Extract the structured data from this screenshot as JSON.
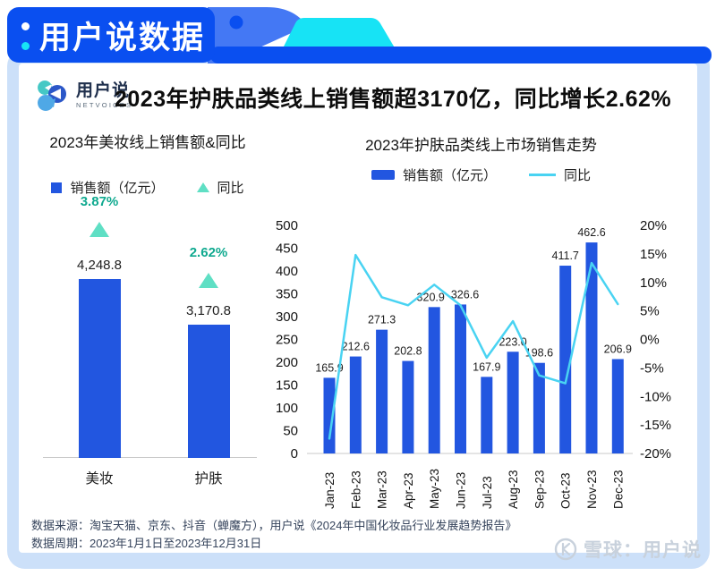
{
  "banner": {
    "title": "用户说数据"
  },
  "brand": {
    "name": "用户说",
    "subtitle": "NETVOICES"
  },
  "headline": "2023年护肤品类线上销售额超3170亿，同比增长2.62%",
  "colors": {
    "banner_blue": "#0A4FF0",
    "header_fish_blue": "#4478F4",
    "ribbon_cyan": "#17E3F5",
    "frame_light_blue": "#CCE0F9",
    "bar_blue": "#2256E0",
    "line_cyan": "#49D3F2",
    "triangle_teal": "#5FDFC4",
    "pct_green": "#0FA98F"
  },
  "chart_data": [
    {
      "type": "bar",
      "title": "2023年美妆线上销售额&同比",
      "legend": [
        "销售额（亿元）",
        "同比"
      ],
      "categories": [
        "美妆",
        "护肤"
      ],
      "series": [
        {
          "name": "销售额（亿元）",
          "values": [
            4248.8,
            3170.8
          ],
          "labels": [
            "4,248.8",
            "3,170.8"
          ]
        },
        {
          "name": "同比",
          "values": [
            3.87,
            2.62
          ],
          "labels": [
            "3.87%",
            "2.62%"
          ]
        }
      ],
      "ylim": [
        0,
        4500
      ],
      "grid": false,
      "legend_position": "top"
    },
    {
      "type": "combo_bar_line",
      "title": "2023年护肤品类线上市场销售走势",
      "legend": [
        "销售额（亿元）",
        "同比"
      ],
      "categories": [
        "Jan-23",
        "Feb-23",
        "Mar-23",
        "Apr-23",
        "May-23",
        "Jun-23",
        "Jul-23",
        "Aug-23",
        "Sep-23",
        "Oct-23",
        "Nov-23",
        "Dec-23"
      ],
      "series": [
        {
          "name": "销售额（亿元）",
          "type": "bar",
          "axis": "left",
          "values": [
            165.9,
            212.6,
            271.3,
            202.8,
            320.9,
            326.6,
            167.9,
            223.0,
            198.6,
            411.7,
            462.6,
            206.9
          ],
          "labels": [
            "165.9",
            "212.6",
            "271.3",
            "202.8",
            "320.9",
            "326.6",
            "167.9",
            "223.0",
            "198.6",
            "411.7",
            "462.6",
            "206.9"
          ]
        },
        {
          "name": "同比",
          "type": "line",
          "axis": "right",
          "values_pct": [
            -17.4,
            14.8,
            7.4,
            6.0,
            9.6,
            6.0,
            -3.2,
            3.2,
            -6.3,
            -7.7,
            13.4,
            6.2
          ]
        }
      ],
      "left_axis": {
        "min": 0,
        "max": 500,
        "step": 50
      },
      "right_axis": {
        "min": -20,
        "max": 20,
        "step": 5,
        "format": "percent"
      },
      "left_ticks": [
        "500",
        "450",
        "400",
        "350",
        "300",
        "250",
        "200",
        "150",
        "100",
        "50",
        "0"
      ],
      "right_ticks": [
        "20%",
        "15%",
        "10%",
        "5%",
        "0%",
        "-5%",
        "-10%",
        "-15%",
        "-20%"
      ],
      "grid": false,
      "legend_position": "top"
    }
  ],
  "footer": {
    "source": "数据来源：淘宝天猫、京东、抖音（蝉魔方），用户说《2024年中国化妆品行业发展趋势报告》",
    "period": "数据周期：2023年1月1日至2023年12月31日"
  },
  "watermark": "雪球：用户说"
}
